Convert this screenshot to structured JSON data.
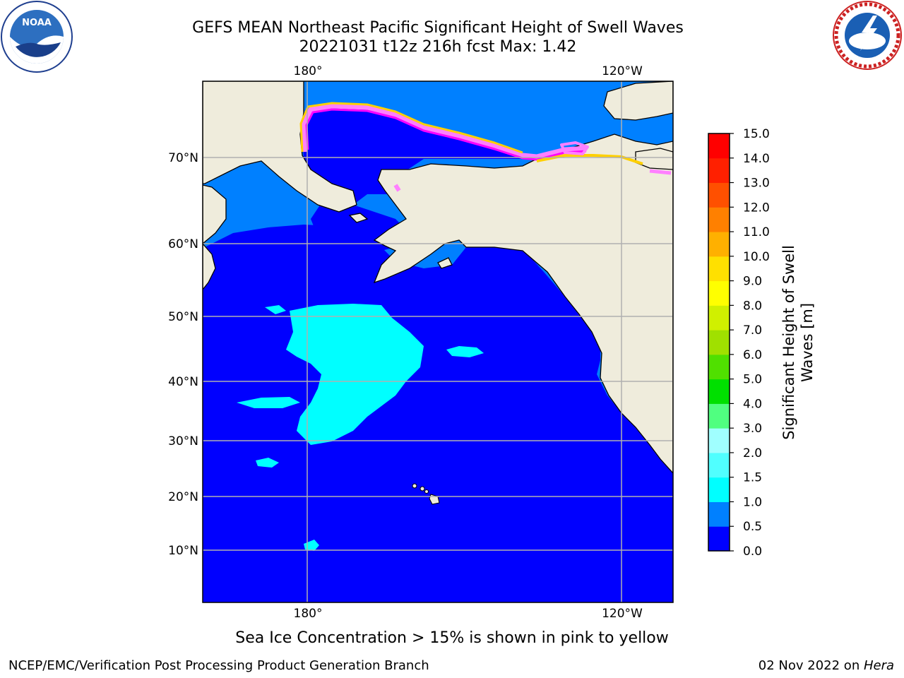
{
  "title": {
    "line1": "GEFS MEAN Northeast Pacific Significant Height of Swell Waves",
    "line2": "20221031 t12z 216h fcst   Max: 1.42"
  },
  "axes": {
    "lon_labels_top": [
      "180°",
      "120°W"
    ],
    "lon_labels_bottom": [
      "180°",
      "120°W"
    ],
    "lat_labels": [
      "70°N",
      "60°N",
      "50°N",
      "40°N",
      "30°N",
      "20°N",
      "10°N"
    ]
  },
  "colorbar": {
    "title_line1": "Significant Height of Swell",
    "title_line2": "Waves [m]",
    "ticks": [
      "0.0",
      "0.5",
      "1.0",
      "1.5",
      "2.0",
      "3.0",
      "4.0",
      "5.0",
      "6.0",
      "7.0",
      "8.0",
      "9.0",
      "10.0",
      "11.0",
      "12.0",
      "13.0",
      "14.0",
      "15.0"
    ],
    "colors": [
      "#0000ff",
      "#0080ff",
      "#00ffff",
      "#50ffff",
      "#a0ffff",
      "#50ff80",
      "#00e000",
      "#50e000",
      "#a0e000",
      "#d0f000",
      "#ffff00",
      "#ffe000",
      "#ffb000",
      "#ff8000",
      "#ff5000",
      "#ff2000",
      "#ff0000"
    ]
  },
  "map_colors": {
    "land": "#efecdc",
    "band_0_0_5": "#0000ff",
    "band_0_5_1_0": "#0080ff",
    "band_1_0_1_5": "#00ffff",
    "ice_pink": "#ff80ff",
    "ice_magenta": "#ff00ff",
    "ice_yellow": "#ffd000",
    "grid": "#b0b0b0"
  },
  "caption": "Sea Ice Concentration > 15% is shown in pink to yellow",
  "footer": {
    "left": "NCEP/EMC/Verification Post Processing Product Generation Branch",
    "right_prefix": "02 Nov 2022 on ",
    "right_machine": "Hera"
  },
  "logos": {
    "noaa_text": "NOAA",
    "nws_text": "NATIONAL WEATHER SERVICE"
  }
}
